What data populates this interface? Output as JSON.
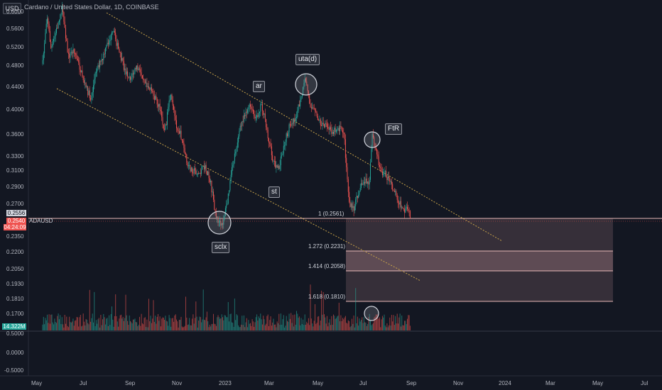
{
  "header": {
    "currency_label": "USD",
    "title": "Cardano / United States Dollar, 1D, COINBASE"
  },
  "price_axis": {
    "ticks": [
      "0.6000",
      "0.5600",
      "0.5200",
      "0.4800",
      "0.4400",
      "0.4000",
      "0.3600",
      "0.3300",
      "0.3100",
      "0.2900",
      "0.2700",
      "0.2350",
      "0.2200",
      "0.2050",
      "0.1930",
      "0.1810",
      "0.1700"
    ],
    "ref_price": "0.2556",
    "current_price": "0.2540",
    "countdown": "04:24:09",
    "symbol": "ADAUSD",
    "volume_value": "14.322M"
  },
  "volume_axis": {
    "ticks": [
      "0.5000",
      "0.0000",
      "-0.5000"
    ]
  },
  "time_axis": {
    "ticks": [
      "May",
      "Jul",
      "Sep",
      "Nov",
      "2023",
      "Mar",
      "May",
      "Jul",
      "Sep",
      "Nov",
      "2024",
      "Mar",
      "May",
      "Jul"
    ]
  },
  "annotations": {
    "sclx": "sclx",
    "ar": "ar",
    "st": "st",
    "utad": "uta(d)",
    "ftr": "FtR"
  },
  "fib_levels": [
    {
      "label": "1 (0.2561)"
    },
    {
      "label": "1.272 (0.2231)"
    },
    {
      "label": "1.414 (0.2058)"
    },
    {
      "label": "1.618 (0.1810)"
    }
  ],
  "colors": {
    "up": "#26a69a",
    "down": "#ef5350",
    "channel": "#c8a34a",
    "fib_fill": "#d8a0a8"
  },
  "chart_data": {
    "type": "candlestick",
    "price_range": [
      0.165,
      0.6
    ],
    "fib_extensions": [
      1,
      1.272,
      1.414,
      1.618
    ],
    "fib_prices": [
      0.2561,
      0.2231,
      0.2058,
      0.181
    ]
  }
}
